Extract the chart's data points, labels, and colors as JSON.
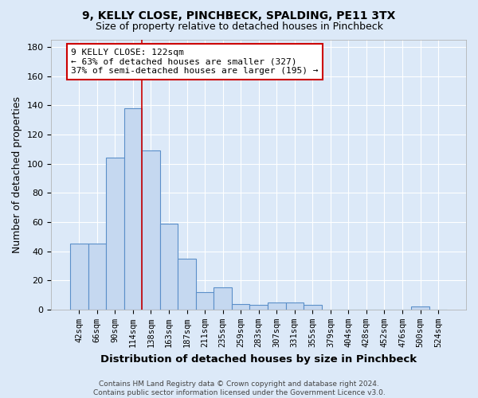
{
  "title1": "9, KELLY CLOSE, PINCHBECK, SPALDING, PE11 3TX",
  "title2": "Size of property relative to detached houses in Pinchbeck",
  "xlabel": "Distribution of detached houses by size in Pinchbeck",
  "ylabel": "Number of detached properties",
  "bar_labels": [
    "42sqm",
    "66sqm",
    "90sqm",
    "114sqm",
    "138sqm",
    "163sqm",
    "187sqm",
    "211sqm",
    "235sqm",
    "259sqm",
    "283sqm",
    "307sqm",
    "331sqm",
    "355sqm",
    "379sqm",
    "404sqm",
    "428sqm",
    "452sqm",
    "476sqm",
    "500sqm",
    "524sqm"
  ],
  "bar_values": [
    45,
    45,
    104,
    138,
    109,
    59,
    35,
    12,
    15,
    4,
    3,
    5,
    5,
    3,
    0,
    0,
    0,
    0,
    0,
    2,
    0
  ],
  "bar_color": "#c5d8f0",
  "bar_edge_color": "#5b8fc9",
  "vline_x": 3.5,
  "vline_color": "#cc0000",
  "annotation_text": "9 KELLY CLOSE: 122sqm\n← 63% of detached houses are smaller (327)\n37% of semi-detached houses are larger (195) →",
  "annotation_box_color": "white",
  "annotation_box_edge_color": "#cc0000",
  "ylim": [
    0,
    185
  ],
  "yticks": [
    0,
    20,
    40,
    60,
    80,
    100,
    120,
    140,
    160,
    180
  ],
  "background_color": "#dce9f8",
  "grid_color": "white",
  "footer_line1": "Contains HM Land Registry data © Crown copyright and database right 2024.",
  "footer_line2": "Contains public sector information licensed under the Government Licence v3.0."
}
